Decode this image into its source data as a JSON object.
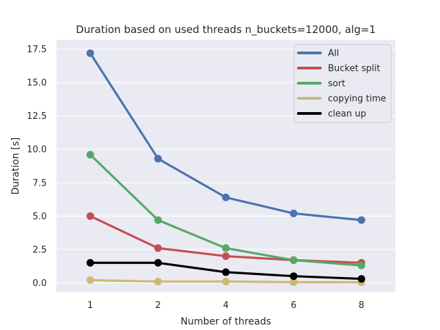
{
  "chart_data": {
    "type": "line",
    "title": "Duration based on used threads n_buckets=12000, alg=1",
    "xlabel": "Number of threads",
    "ylabel": "Duration [s]",
    "categories": [
      "1",
      "2",
      "4",
      "6",
      "8"
    ],
    "ylim": [
      -0.7,
      18.2
    ],
    "yticks": [
      "0.0",
      "2.5",
      "5.0",
      "7.5",
      "10.0",
      "12.5",
      "15.0",
      "17.5"
    ],
    "grid": true,
    "legend_position": "top-right",
    "series": [
      {
        "name": "All",
        "color": "#4c72b0",
        "values": [
          17.2,
          9.3,
          6.4,
          5.2,
          4.7
        ]
      },
      {
        "name": "Bucket split",
        "color": "#c44e52",
        "values": [
          5.0,
          2.6,
          2.0,
          1.7,
          1.5
        ]
      },
      {
        "name": "sort",
        "color": "#55a868",
        "values": [
          9.6,
          4.7,
          2.6,
          1.7,
          1.3
        ]
      },
      {
        "name": "copying time",
        "color": "#ccb974",
        "values": [
          0.2,
          0.1,
          0.1,
          0.05,
          0.05
        ]
      },
      {
        "name": "clean up",
        "color": "#000000",
        "values": [
          1.5,
          1.5,
          0.8,
          0.5,
          0.3
        ]
      }
    ]
  }
}
